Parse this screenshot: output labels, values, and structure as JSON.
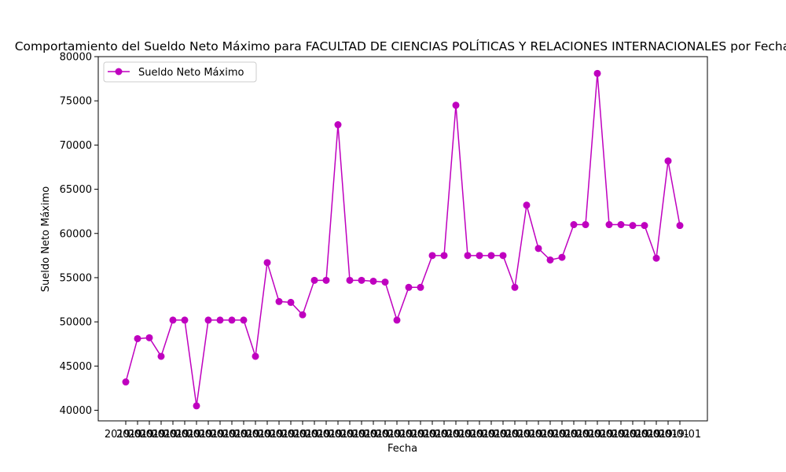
{
  "chart_data": {
    "type": "line",
    "title": "Comportamiento del Sueldo Neto Máximo para FACULTAD DE CIENCIAS POLÍTICAS Y RELACIONES INTERNACIONALES por Fecha",
    "xlabel": "Fecha",
    "ylabel": "Sueldo Neto Máximo",
    "ylim": [
      38800,
      80000
    ],
    "yticks": [
      40000,
      45000,
      50000,
      55000,
      60000,
      65000,
      70000,
      75000,
      80000
    ],
    "xtick_label_text": "2019-01",
    "legend_position": "upper-left",
    "grid": false,
    "color": "#bf00bf",
    "series": [
      {
        "name": "Sueldo Neto Máximo",
        "values": [
          43200,
          48100,
          48200,
          46100,
          50200,
          50200,
          40500,
          50200,
          50200,
          50200,
          50200,
          46100,
          56700,
          52300,
          52200,
          50800,
          54700,
          54700,
          72300,
          54700,
          54700,
          54600,
          54500,
          50200,
          53900,
          53900,
          57500,
          57500,
          74500,
          57500,
          57500,
          57500,
          57500,
          53900,
          63200,
          58300,
          57000,
          57300,
          61000,
          61000,
          78100,
          61000,
          61000,
          60900,
          60900,
          57200,
          68200,
          60900
        ]
      }
    ]
  }
}
